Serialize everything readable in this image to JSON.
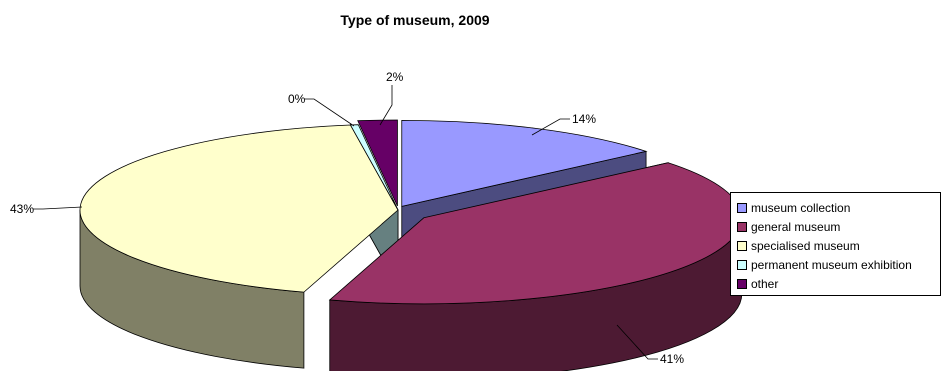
{
  "chart_data": {
    "type": "pie",
    "title": "Type of museum, 2009",
    "three_d": true,
    "legend_position": "right",
    "slices": [
      {
        "label": "museum collection",
        "value": 14,
        "value_label": "14%",
        "color": "#9999FF",
        "side_color": "#4C4C80"
      },
      {
        "label": "general museum",
        "value": 41,
        "value_label": "41%",
        "color": "#993366",
        "side_color": "#4D1A33"
      },
      {
        "label": "specialised museum",
        "value": 43,
        "value_label": "43%",
        "color": "#FFFFCC",
        "side_color": "#808066"
      },
      {
        "label": "permanent museum exhibition",
        "value": 0.4,
        "value_label": "0%",
        "color": "#CCFFFF",
        "side_color": "#668080"
      },
      {
        "label": "other",
        "value": 2,
        "value_label": "2%",
        "color": "#660066",
        "side_color": "#330033"
      }
    ]
  }
}
